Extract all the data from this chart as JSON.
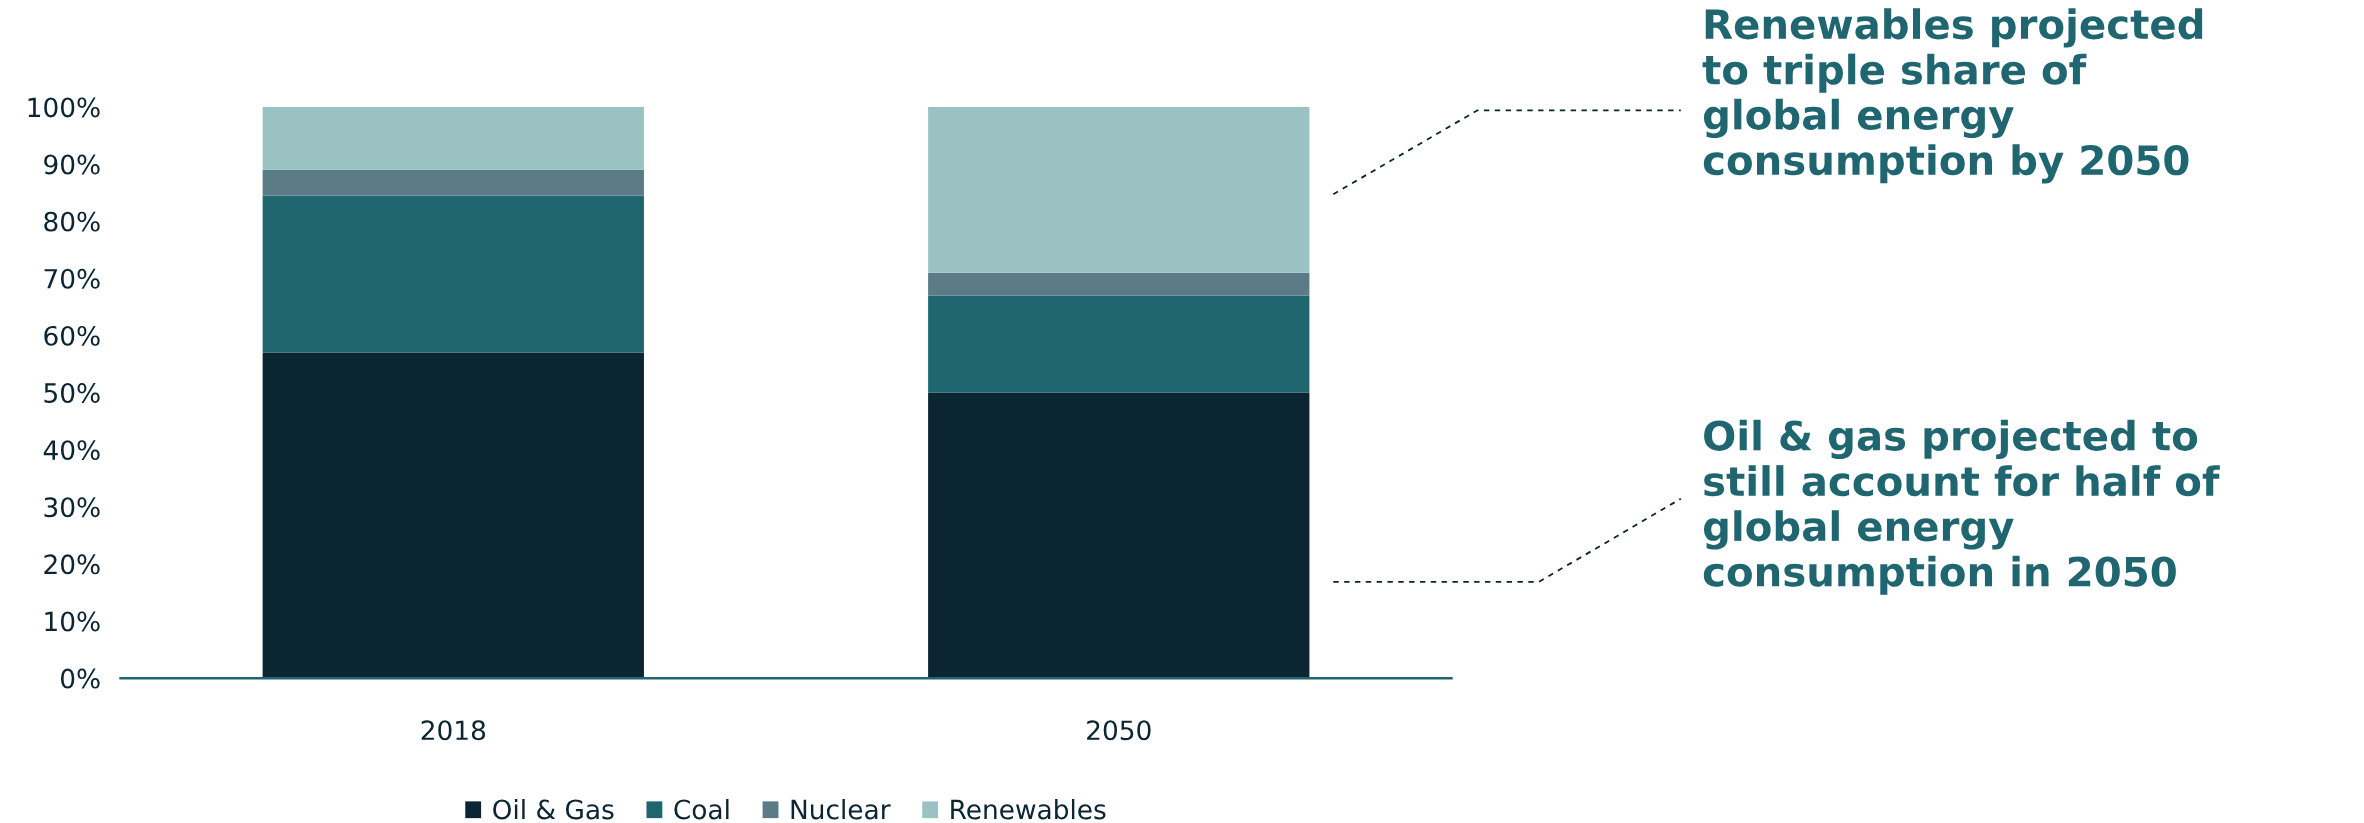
{
  "chart_data": {
    "type": "bar",
    "stacked": true,
    "categories": [
      "2018",
      "2050"
    ],
    "series": [
      {
        "name": "Oil & Gas",
        "color": "#0b2533",
        "values": [
          57,
          50
        ]
      },
      {
        "name": "Coal",
        "color": "#1f6670",
        "values": [
          27.5,
          17
        ]
      },
      {
        "name": "Nuclear",
        "color": "#5b7b87",
        "values": [
          4.5,
          4
        ]
      },
      {
        "name": "Renewables",
        "color": "#9bc2c2",
        "values": [
          11,
          29
        ]
      }
    ],
    "ylim": [
      0,
      100
    ],
    "yticks": [
      {
        "value": 0,
        "label": "0%"
      },
      {
        "value": 10,
        "label": "10%"
      },
      {
        "value": 20,
        "label": "20%"
      },
      {
        "value": 30,
        "label": "30%"
      },
      {
        "value": 40,
        "label": "40%"
      },
      {
        "value": 50,
        "label": "50%"
      },
      {
        "value": 60,
        "label": "60%"
      },
      {
        "value": 70,
        "label": "70%"
      },
      {
        "value": 80,
        "label": "80%"
      },
      {
        "value": 90,
        "label": "90%"
      },
      {
        "value": 100,
        "label": "100%"
      }
    ],
    "grid": false,
    "legend": "bottom",
    "annotations": [
      "Renewables projected\nto triple share of\nglobal energy\nconsumption by 2050",
      "Oil & gas projected to\nstill account for half of\nglobal energy\nconsumption in 2050"
    ]
  }
}
